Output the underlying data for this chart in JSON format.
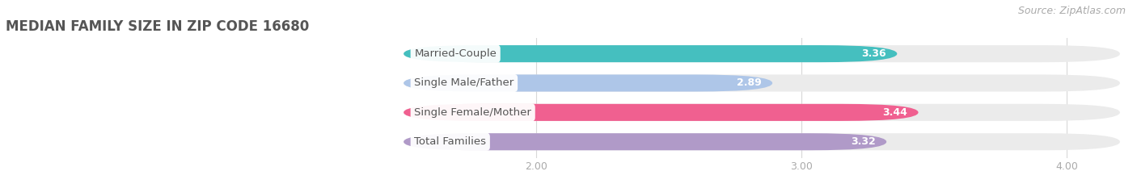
{
  "title": "MEDIAN FAMILY SIZE IN ZIP CODE 16680",
  "source": "Source: ZipAtlas.com",
  "categories": [
    "Married-Couple",
    "Single Male/Father",
    "Single Female/Mother",
    "Total Families"
  ],
  "values": [
    3.36,
    2.89,
    3.44,
    3.32
  ],
  "bar_colors": [
    "#45bfbf",
    "#aec6e8",
    "#f06090",
    "#b09ac8"
  ],
  "bar_bg_color": "#ebebeb",
  "xlim": [
    0.0,
    4.2
  ],
  "xmin": 1.5,
  "xticks": [
    2.0,
    3.0,
    4.0
  ],
  "xtick_labels": [
    "2.00",
    "3.00",
    "4.00"
  ],
  "background_color": "#ffffff",
  "title_fontsize": 12,
  "label_fontsize": 9.5,
  "value_fontsize": 9,
  "tick_fontsize": 9,
  "source_fontsize": 9
}
